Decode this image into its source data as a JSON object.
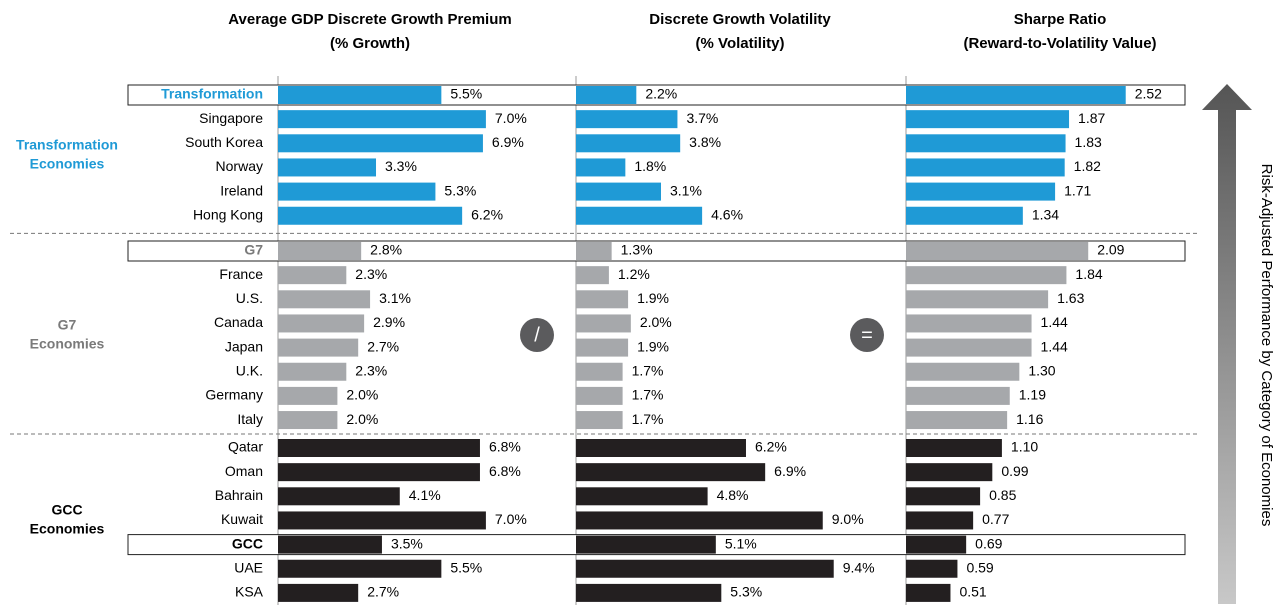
{
  "chart_data": {
    "type": "bar",
    "groups": [
      {
        "label_lines": [
          "Transformation",
          "Economies"
        ],
        "color": "#1f9ad6",
        "label_color": "#1f9ad6",
        "aggregate_index": 0,
        "categories": [
          "Transformation",
          "Singapore",
          "South Korea",
          "Norway",
          "Ireland",
          "Hong Kong"
        ]
      },
      {
        "label_lines": [
          "G7",
          "Economies"
        ],
        "color": "#a6a8ab",
        "label_color": "#7a7a7a",
        "aggregate_index": 0,
        "categories": [
          "G7",
          "France",
          "U.S.",
          "Canada",
          "Japan",
          "U.K.",
          "Germany",
          "Italy"
        ]
      },
      {
        "label_lines": [
          "GCC",
          "Economies"
        ],
        "color": "#231f20",
        "label_color": "#000000",
        "aggregate_index": 4,
        "categories": [
          "Qatar",
          "Oman",
          "Bahrain",
          "Kuwait",
          "GCC",
          "UAE",
          "KSA"
        ]
      }
    ],
    "series": [
      {
        "title_lines": [
          "Average GDP Discrete Growth Premium",
          "(% Growth)"
        ],
        "xlim": [
          0,
          10
        ],
        "values": [
          5.5,
          7.0,
          6.9,
          3.3,
          5.3,
          6.2,
          2.8,
          2.3,
          3.1,
          2.9,
          2.7,
          2.3,
          2.0,
          2.0,
          6.8,
          6.8,
          4.1,
          7.0,
          3.5,
          5.5,
          2.7
        ],
        "value_labels": [
          "5.5%",
          "7.0%",
          "6.9%",
          "3.3%",
          "5.3%",
          "6.2%",
          "2.8%",
          "2.3%",
          "3.1%",
          "2.9%",
          "2.7%",
          "2.3%",
          "2.0%",
          "2.0%",
          "6.8%",
          "6.8%",
          "4.1%",
          "7.0%",
          "3.5%",
          "5.5%",
          "2.7%"
        ]
      },
      {
        "title_lines": [
          "Discrete Growth Volatility",
          "(% Volatility)"
        ],
        "xlim": [
          0,
          12
        ],
        "values": [
          2.2,
          3.7,
          3.8,
          1.8,
          3.1,
          4.6,
          1.3,
          1.2,
          1.9,
          2.0,
          1.9,
          1.7,
          1.7,
          1.7,
          6.2,
          6.9,
          4.8,
          9.0,
          5.1,
          9.4,
          5.3
        ],
        "value_labels": [
          "2.2%",
          "3.7%",
          "3.8%",
          "1.8%",
          "3.1%",
          "4.6%",
          "1.3%",
          "1.2%",
          "1.9%",
          "2.0%",
          "1.9%",
          "1.7%",
          "1.7%",
          "1.7%",
          "6.2%",
          "6.9%",
          "4.8%",
          "9.0%",
          "5.1%",
          "9.4%",
          "5.3%"
        ]
      },
      {
        "title_lines": [
          "Sharpe Ratio",
          "(Reward-to-Volatility Value)"
        ],
        "xlim": [
          0,
          3.2
        ],
        "values": [
          2.52,
          1.87,
          1.83,
          1.82,
          1.71,
          1.34,
          2.09,
          1.84,
          1.63,
          1.44,
          1.44,
          1.3,
          1.19,
          1.16,
          1.1,
          0.99,
          0.85,
          0.77,
          0.69,
          0.59,
          0.51
        ],
        "value_labels": [
          "2.52",
          "1.87",
          "1.83",
          "1.82",
          "1.71",
          "1.34",
          "2.09",
          "1.84",
          "1.63",
          "1.44",
          "1.44",
          "1.30",
          "1.19",
          "1.16",
          "1.10",
          "0.99",
          "0.85",
          "0.77",
          "0.69",
          "0.59",
          "0.51"
        ]
      }
    ],
    "operators": [
      "/",
      "="
    ],
    "side_label": "Risk-Adjusted Performance by Category of Economies"
  }
}
